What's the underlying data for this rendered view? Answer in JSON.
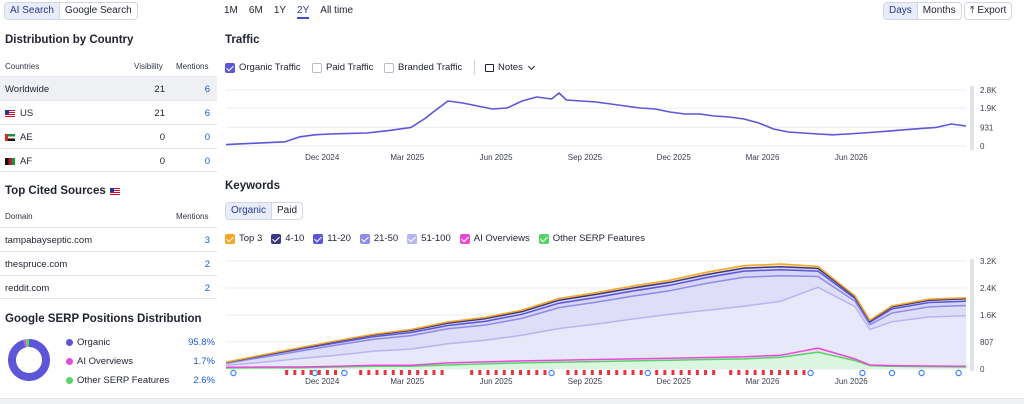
{
  "search_toggle": {
    "options": [
      "AI Search",
      "Google Search"
    ],
    "active": 0
  },
  "range_tabs": {
    "options": [
      "1M",
      "6M",
      "1Y",
      "2Y",
      "All time"
    ],
    "active": 3
  },
  "granularity": {
    "options": [
      "Days",
      "Months"
    ],
    "active": 0
  },
  "export_label": "Export",
  "distribution": {
    "title": "Distribution by Country",
    "headers": {
      "country": "Countries",
      "visibility": "Visibility",
      "mentions": "Mentions"
    },
    "rows": [
      {
        "country": "Worldwide",
        "visibility": "21",
        "mentions": "6",
        "flag": ""
      },
      {
        "country": "US",
        "visibility": "21",
        "mentions": "6",
        "flag": "us"
      },
      {
        "country": "AE",
        "visibility": "0",
        "mentions": "0",
        "flag": "ae"
      },
      {
        "country": "AF",
        "visibility": "0",
        "mentions": "0",
        "flag": "af"
      }
    ]
  },
  "cited_sources": {
    "title": "Top Cited Sources",
    "headers": {
      "domain": "Domain",
      "mentions": "Mentions"
    },
    "rows": [
      {
        "domain": "tampabayseptic.com",
        "mentions": "3"
      },
      {
        "domain": "thespruce.com",
        "mentions": "2"
      },
      {
        "domain": "reddit.com",
        "mentions": "2"
      }
    ]
  },
  "serp_distribution": {
    "title": "Google SERP Positions Distribution",
    "items": [
      {
        "label": "Organic",
        "value": "95.8%",
        "pct": 95.8,
        "color": "#5c56d8"
      },
      {
        "label": "AI Overviews",
        "value": "1.7%",
        "pct": 1.7,
        "color": "#e64bd8"
      },
      {
        "label": "Other SERP Features",
        "value": "2.6%",
        "pct": 2.6,
        "color": "#55d46a"
      }
    ]
  },
  "traffic": {
    "title": "Traffic",
    "filters": [
      {
        "label": "Organic Traffic",
        "checked": true
      },
      {
        "label": "Paid Traffic",
        "checked": false
      },
      {
        "label": "Branded Traffic",
        "checked": false
      }
    ],
    "notes_label": "Notes"
  },
  "keywords": {
    "title": "Keywords",
    "tabs": [
      "Organic",
      "Paid"
    ],
    "active_tab": 0,
    "legend": [
      {
        "label": "Top 3",
        "color": "#f5a623"
      },
      {
        "label": "4-10",
        "color": "#3c3880"
      },
      {
        "label": "11-20",
        "color": "#5c56d8"
      },
      {
        "label": "21-50",
        "color": "#8f8be6"
      },
      {
        "label": "51-100",
        "color": "#b7b5f0"
      },
      {
        "label": "AI Overviews",
        "color": "#e64bd8"
      },
      {
        "label": "Other SERP Features",
        "color": "#55d46a"
      }
    ]
  },
  "chart_data": [
    {
      "type": "line",
      "title": "Traffic",
      "x_ticks": [
        "Dec 2024",
        "Mar 2025",
        "Jun 2025",
        "Sep 2025",
        "Dec 2025",
        "Mar 2026",
        "Jun 2026"
      ],
      "y_ticks": [
        "2.8K",
        "1.9K",
        "931",
        "0"
      ],
      "ylim": [
        0,
        2800
      ],
      "grid": true,
      "series": [
        {
          "name": "Organic Traffic",
          "color": "#5c56d8",
          "x": [
            0,
            4,
            8,
            10,
            12,
            14,
            16,
            19,
            22,
            25,
            27,
            28,
            30,
            32,
            34,
            36,
            38,
            40,
            42,
            44,
            45,
            46,
            48,
            50,
            52,
            54,
            56,
            58,
            60,
            62,
            64,
            66,
            68,
            70,
            72,
            74,
            76,
            78,
            80,
            82,
            84,
            86,
            88,
            90,
            92,
            94,
            96,
            98,
            100
          ],
          "y": [
            70,
            140,
            210,
            460,
            560,
            600,
            620,
            650,
            770,
            930,
            1400,
            1700,
            2250,
            2150,
            2000,
            1850,
            1900,
            2250,
            2450,
            2350,
            2650,
            2300,
            2250,
            2200,
            2100,
            2000,
            1900,
            1850,
            1700,
            1600,
            1600,
            1500,
            1450,
            1350,
            1150,
            850,
            700,
            650,
            600,
            560,
            600,
            650,
            700,
            760,
            820,
            880,
            930,
            1100,
            1000
          ]
        }
      ]
    },
    {
      "type": "area",
      "title": "Keywords",
      "x_ticks": [
        "Dec 2024",
        "Mar 2025",
        "Jun 2025",
        "Sep 2025",
        "Dec 2025",
        "Mar 2026",
        "Jun 2026"
      ],
      "y_ticks": [
        "3.2K",
        "2.4K",
        "1.6K",
        "807",
        "0"
      ],
      "ylim": [
        0,
        3200
      ],
      "grid": true,
      "stacked": true,
      "x": [
        0,
        5,
        10,
        15,
        20,
        25,
        30,
        35,
        40,
        45,
        50,
        55,
        60,
        65,
        70,
        75,
        80,
        85,
        87,
        90,
        95,
        100
      ],
      "series": [
        {
          "name": "Other SERP Features",
          "color": "#55d46a",
          "values": [
            30,
            40,
            40,
            60,
            80,
            80,
            120,
            150,
            180,
            200,
            220,
            240,
            260,
            280,
            300,
            350,
            500,
            250,
            100,
            80,
            70,
            60
          ]
        },
        {
          "name": "AI Overviews",
          "color": "#e64bd8",
          "values": [
            20,
            20,
            20,
            20,
            30,
            30,
            60,
            60,
            60,
            60,
            60,
            60,
            60,
            60,
            60,
            60,
            120,
            50,
            20,
            20,
            20,
            20
          ]
        },
        {
          "name": "51-100",
          "color": "#b7b5f0",
          "values": [
            60,
            140,
            250,
            330,
            420,
            480,
            570,
            640,
            760,
            940,
            1050,
            1180,
            1300,
            1400,
            1500,
            1600,
            1800,
            1550,
            1050,
            1300,
            1450,
            1500
          ]
        },
        {
          "name": "21-50",
          "color": "#8f8be6",
          "values": [
            60,
            150,
            220,
            300,
            350,
            400,
            440,
            450,
            500,
            620,
            650,
            680,
            700,
            800,
            860,
            750,
            320,
            160,
            140,
            260,
            300,
            300
          ]
        },
        {
          "name": "11-20",
          "color": "#5c56d8",
          "values": [
            20,
            40,
            60,
            70,
            80,
            90,
            100,
            110,
            120,
            130,
            140,
            150,
            160,
            170,
            180,
            180,
            160,
            80,
            70,
            120,
            130,
            130
          ]
        },
        {
          "name": "4-10",
          "color": "#3c3880",
          "values": [
            10,
            20,
            30,
            40,
            50,
            60,
            70,
            80,
            80,
            90,
            90,
            90,
            90,
            90,
            90,
            90,
            80,
            50,
            40,
            60,
            70,
            70
          ]
        },
        {
          "name": "Top 3",
          "color": "#f5a623",
          "values": [
            5,
            10,
            15,
            20,
            25,
            30,
            35,
            40,
            45,
            50,
            55,
            60,
            65,
            70,
            75,
            80,
            60,
            30,
            25,
            30,
            30,
            30
          ]
        }
      ]
    }
  ]
}
